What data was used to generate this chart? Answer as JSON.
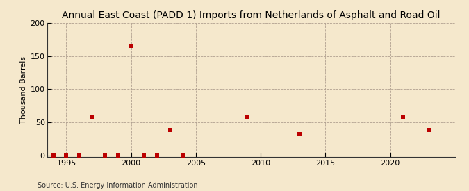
{
  "title": "Annual East Coast (PADD 1) Imports from Netherlands of Asphalt and Road Oil",
  "ylabel": "Thousand Barrels",
  "source": "Source: U.S. Energy Information Administration",
  "xlim": [
    1993.5,
    2025
  ],
  "ylim": [
    -2,
    200
  ],
  "yticks": [
    0,
    50,
    100,
    150,
    200
  ],
  "xticks": [
    1995,
    2000,
    2005,
    2010,
    2015,
    2020
  ],
  "background_color": "#f5e8cc",
  "plot_bg_color": "#f5e8cc",
  "grid_color": "#b0a090",
  "marker_color": "#bb0000",
  "title_fontsize": 10,
  "tick_fontsize": 8,
  "source_fontsize": 7,
  "data_x": [
    1994,
    1995,
    1996,
    1997,
    1998,
    1999,
    2000,
    2001,
    2002,
    2003,
    2004,
    2009,
    2013,
    2021,
    2023
  ],
  "data_y": [
    0,
    0,
    0,
    57,
    0,
    0,
    165,
    0,
    0,
    38,
    0,
    58,
    32,
    57,
    38
  ]
}
